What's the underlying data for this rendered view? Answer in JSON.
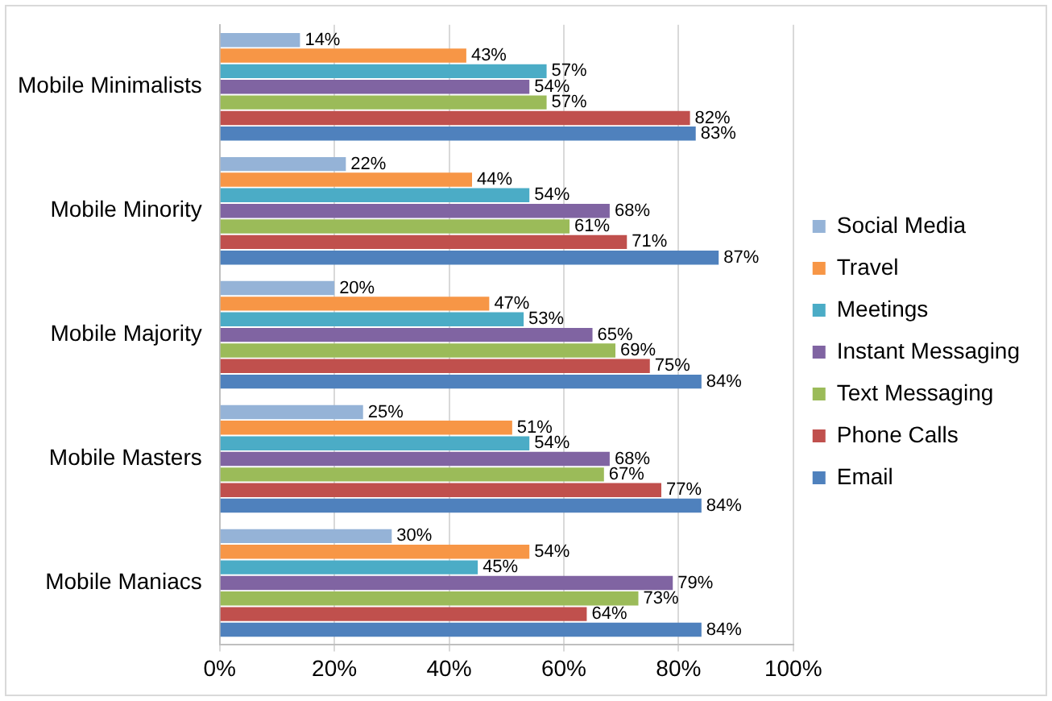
{
  "chart_data": {
    "type": "bar",
    "orientation": "horizontal",
    "categories": [
      "Mobile Minimalists",
      "Mobile Minority",
      "Mobile Majority",
      "Mobile Masters",
      "Mobile Maniacs"
    ],
    "series": [
      {
        "name": "Social Media",
        "color": "#95b3d7",
        "values": [
          14,
          22,
          20,
          25,
          30
        ],
        "value_labels": [
          "14%",
          "22%",
          "20%",
          "25%",
          "30%"
        ]
      },
      {
        "name": "Travel",
        "color": "#f79646",
        "values": [
          43,
          44,
          47,
          51,
          54
        ],
        "value_labels": [
          "43%",
          "44%",
          "47%",
          "51%",
          "54%"
        ]
      },
      {
        "name": "Meetings",
        "color": "#4bacc6",
        "values": [
          57,
          54,
          53,
          54,
          45
        ],
        "value_labels": [
          "57%",
          "54%",
          "53%",
          "54%",
          "45%"
        ]
      },
      {
        "name": "Instant Messaging",
        "color": "#8064a2",
        "values": [
          54,
          68,
          65,
          68,
          79
        ],
        "value_labels": [
          "54%",
          "68%",
          "65%",
          "68%",
          "79%"
        ]
      },
      {
        "name": "Text Messaging",
        "color": "#9bbb59",
        "values": [
          57,
          61,
          69,
          67,
          73
        ],
        "value_labels": [
          "57%",
          "61%",
          "69%",
          "67%",
          "73%"
        ]
      },
      {
        "name": "Phone Calls",
        "color": "#c0504d",
        "values": [
          82,
          71,
          75,
          77,
          64
        ],
        "value_labels": [
          "82%",
          "71%",
          "75%",
          "77%",
          "64%"
        ]
      },
      {
        "name": "Email",
        "color": "#4f81bd",
        "values": [
          83,
          87,
          84,
          84,
          84
        ],
        "value_labels": [
          "83%",
          "87%",
          "84%",
          "84%",
          "84%"
        ]
      }
    ],
    "xlim": [
      0,
      100
    ],
    "xticks": [
      {
        "value": 0,
        "label": "0%"
      },
      {
        "value": 20,
        "label": "20%"
      },
      {
        "value": 40,
        "label": "40%"
      },
      {
        "value": 60,
        "label": "60%"
      },
      {
        "value": 80,
        "label": "80%"
      },
      {
        "value": 100,
        "label": "100%"
      }
    ],
    "grid": "x",
    "legend": "right"
  }
}
